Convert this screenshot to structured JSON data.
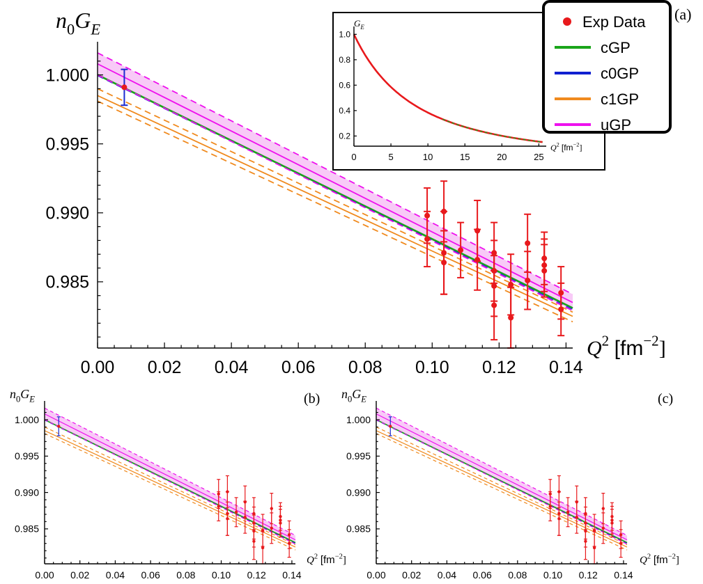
{
  "panel_labels": [
    "(a)",
    "(b)",
    "(c)"
  ],
  "legend": {
    "entries": [
      {
        "label": "Exp Data",
        "color": "#e8191c",
        "kind": "dot"
      },
      {
        "label": "cGP",
        "color": "#1aa51a",
        "kind": "line"
      },
      {
        "label": "c0GP",
        "color": "#1020d0",
        "kind": "line"
      },
      {
        "label": "c1GP",
        "color": "#f08a1e",
        "kind": "line"
      },
      {
        "label": "uGP",
        "color": "#ee11ee",
        "kind": "line"
      }
    ]
  },
  "colors": {
    "exp": "#e8191c",
    "cGP": "#1aa51a",
    "c0GP": "#1020d0",
    "c1GP": "#f08a1e",
    "uGP": "#ee11ee",
    "uGP_band": "#f6b8f4",
    "first_point_bar": "#1a2ad0"
  },
  "chart_data": [
    {
      "id": "a",
      "type": "line",
      "ylabel_base": "n",
      "ylabel_sub": "0",
      "ylabel_tail": "G",
      "ylabel_tail_sub": "E",
      "xlabel_base": "Q",
      "xlabel_sup": "2",
      "xlabel_unit": "[fm",
      "xlabel_unit_sup": "−2",
      "xlabel_unit_close": "]",
      "xlim": [
        0.0,
        0.142
      ],
      "ylim": [
        0.9802,
        1.0022
      ],
      "xticks": [
        "0.00",
        "0.02",
        "0.04",
        "0.06",
        "0.08",
        "0.10",
        "0.12",
        "0.14"
      ],
      "yticks": [
        "0.985",
        "0.990",
        "0.995",
        "1.000"
      ],
      "lines": {
        "uGP": {
          "y0": 1.0008,
          "y1": 0.9835,
          "band_hi0": 1.0016,
          "band_hi1": 0.9841,
          "band_lo0": 1.0,
          "band_lo1": 0.9829
        },
        "cGP": {
          "y0": 1.0,
          "y1": 0.9831
        },
        "c0GP": {
          "y0": 0.99995,
          "y1": 0.983
        },
        "c1GP": {
          "y0": 0.9985,
          "y1": 0.9825,
          "band_hi0": 0.999,
          "band_hi1": 0.9828,
          "band_lo0": 0.9981,
          "band_lo1": 0.9821
        }
      },
      "points": [
        {
          "x": 0.008,
          "y": 0.9991,
          "err": 0.0013,
          "bar": "first"
        },
        {
          "x": 0.0985,
          "y": 0.9898,
          "err": 0.002
        },
        {
          "x": 0.0985,
          "y": 0.9881,
          "err": 0.002
        },
        {
          "x": 0.1035,
          "y": 0.9901,
          "err": 0.0022
        },
        {
          "x": 0.1035,
          "y": 0.9871,
          "err": 0.003
        },
        {
          "x": 0.1035,
          "y": 0.9864,
          "err": 0.0023
        },
        {
          "x": 0.1085,
          "y": 0.9873,
          "err": 0.002
        },
        {
          "x": 0.1135,
          "y": 0.9887,
          "err": 0.0022
        },
        {
          "x": 0.1135,
          "y": 0.9866,
          "err": 0.0022
        },
        {
          "x": 0.1185,
          "y": 0.9871,
          "err": 0.0022
        },
        {
          "x": 0.1185,
          "y": 0.9858,
          "err": 0.0022
        },
        {
          "x": 0.1185,
          "y": 0.9847,
          "err": 0.0022
        },
        {
          "x": 0.1185,
          "y": 0.9833,
          "err": 0.0025
        },
        {
          "x": 0.1235,
          "y": 0.9848,
          "err": 0.0022
        },
        {
          "x": 0.1235,
          "y": 0.9824,
          "err": 0.0022
        },
        {
          "x": 0.1285,
          "y": 0.9878,
          "err": 0.0021
        },
        {
          "x": 0.1285,
          "y": 0.9851,
          "err": 0.0021
        },
        {
          "x": 0.1335,
          "y": 0.9867,
          "err": 0.0019
        },
        {
          "x": 0.1335,
          "y": 0.9862,
          "err": 0.0019
        },
        {
          "x": 0.1335,
          "y": 0.9858,
          "err": 0.0019
        },
        {
          "x": 0.1385,
          "y": 0.9842,
          "err": 0.0019
        },
        {
          "x": 0.1385,
          "y": 0.983,
          "err": 0.0019
        }
      ]
    },
    {
      "id": "a-inset",
      "type": "line",
      "ylabel_base": "G",
      "ylabel_sub": "E",
      "xlabel_base": "Q",
      "xlabel_sup": "2",
      "xlabel_unit": "[fm",
      "xlabel_unit_sup": "−2",
      "xlabel_unit_close": "]",
      "xlim": [
        0,
        26
      ],
      "ylim": [
        0.12,
        1.04
      ],
      "xticks": [
        "0",
        "5",
        "10",
        "15",
        "20",
        "25"
      ],
      "yticks": [
        "0.2",
        "0.4",
        "0.6",
        "0.8",
        "1.0"
      ],
      "curve_form": "1/(1+Q2/a)^2",
      "curve_param_a": 16.3
    },
    {
      "id": "b",
      "type": "line",
      "ylabel_base": "n",
      "ylabel_sub": "0",
      "ylabel_tail": "G",
      "ylabel_tail_sub": "E",
      "xlabel_base": "Q",
      "xlabel_sup": "2",
      "xlabel_unit": "[fm",
      "xlabel_unit_sup": "−2",
      "xlabel_unit_close": "]",
      "xlim": [
        0.0,
        0.142
      ],
      "ylim": [
        0.9802,
        1.0022
      ],
      "xticks": [
        "0.00",
        "0.02",
        "0.04",
        "0.06",
        "0.08",
        "0.10",
        "0.12",
        "0.14"
      ],
      "yticks": [
        "0.985",
        "0.990",
        "0.995",
        "1.000"
      ]
    },
    {
      "id": "c",
      "type": "line",
      "ylabel_base": "n",
      "ylabel_sub": "0",
      "ylabel_tail": "G",
      "ylabel_tail_sub": "E",
      "xlabel_base": "Q",
      "xlabel_sup": "2",
      "xlabel_unit": "[fm",
      "xlabel_unit_sup": "−2",
      "xlabel_unit_close": "]",
      "xlim": [
        0.0,
        0.142
      ],
      "ylim": [
        0.9802,
        1.0022
      ],
      "xticks": [
        "0.00",
        "0.02",
        "0.04",
        "0.06",
        "0.08",
        "0.10",
        "0.12",
        "0.14"
      ],
      "yticks": [
        "0.985",
        "0.990",
        "0.995",
        "1.000"
      ]
    }
  ]
}
